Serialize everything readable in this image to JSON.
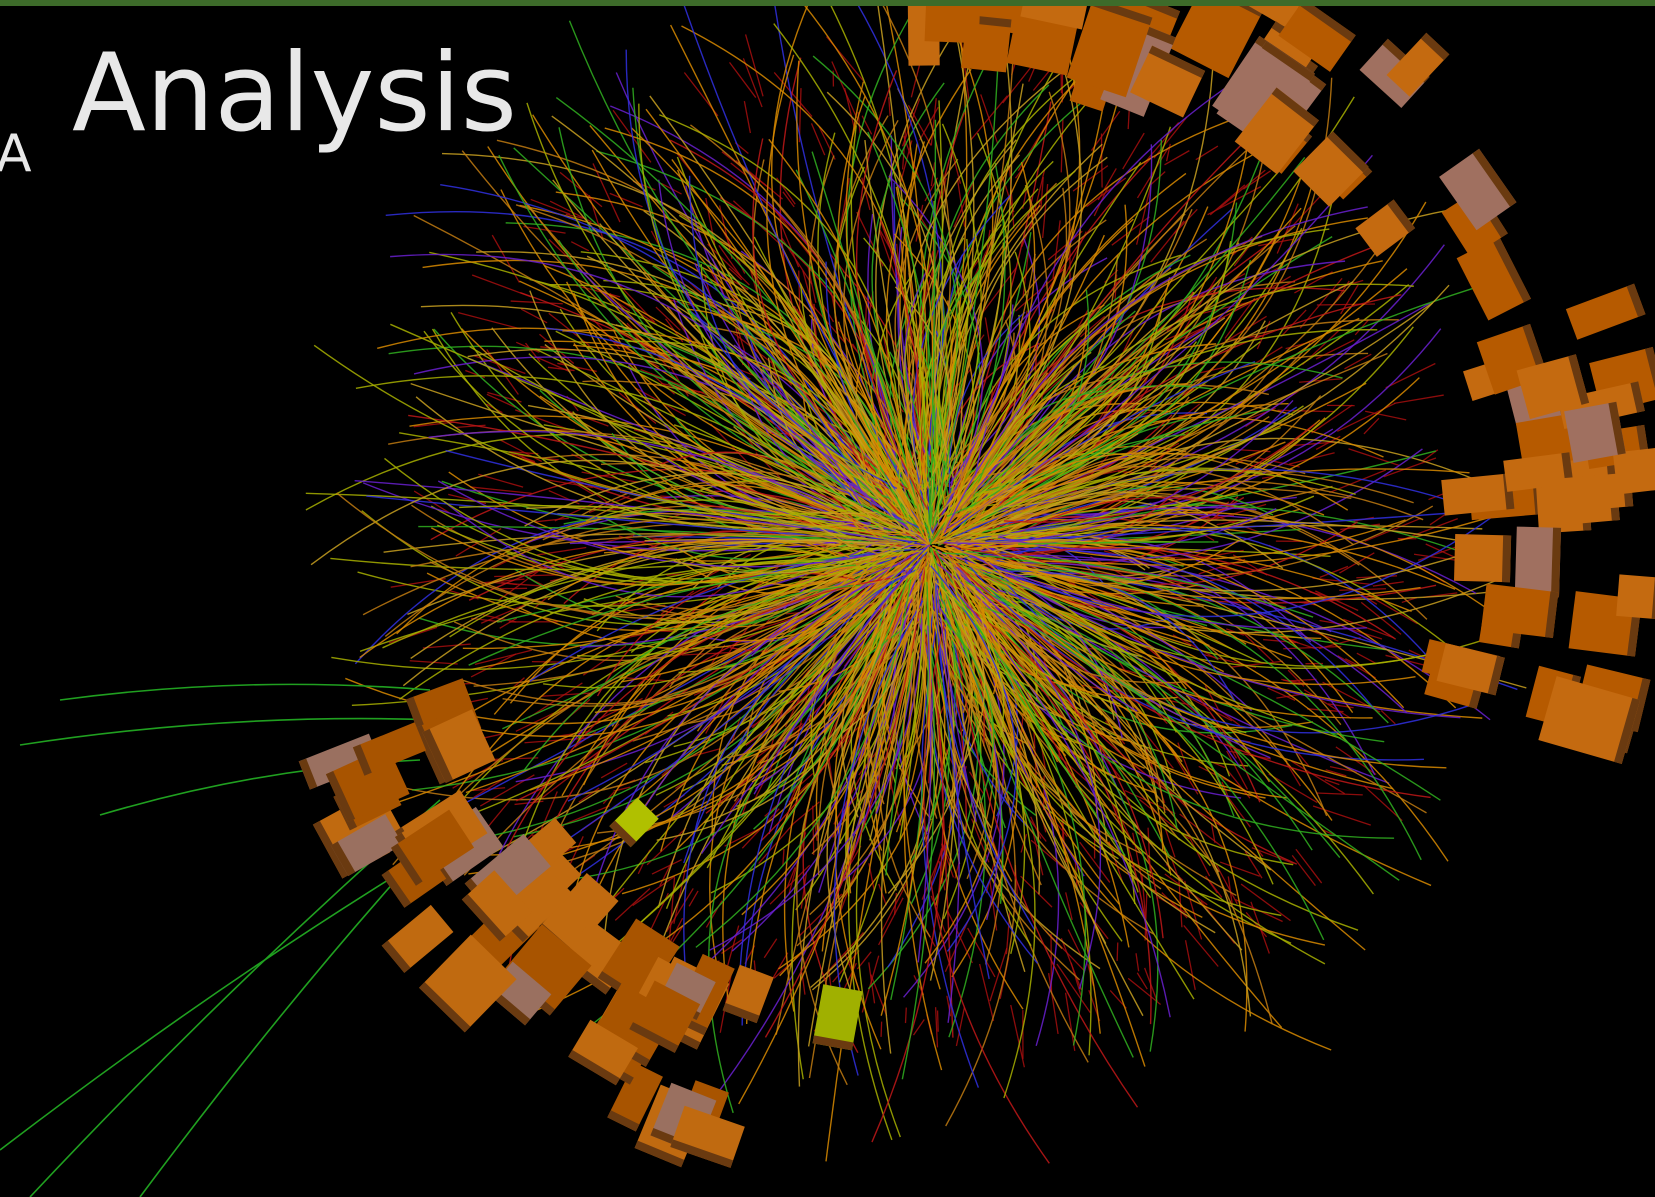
{
  "title": {
    "subscript": "A",
    "main": "Analysis"
  }
}
